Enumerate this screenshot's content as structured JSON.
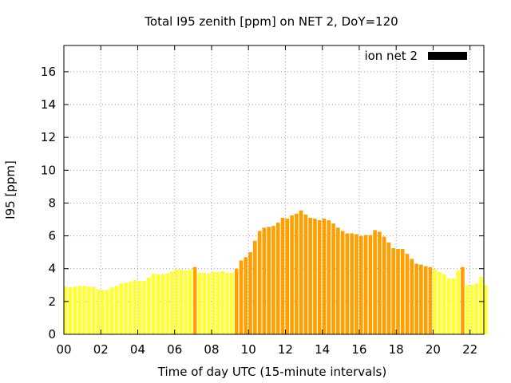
{
  "chart_data": {
    "type": "bar",
    "title": "Total I95 zenith [ppm] on NET 2, DoY=120",
    "xlabel": "Time of day UTC (15-minute intervals)",
    "ylabel": "I95 [ppm]",
    "xlim": [
      0,
      22.75
    ],
    "ylim": [
      0,
      17.6
    ],
    "xticks": [
      "00",
      "02",
      "04",
      "06",
      "08",
      "10",
      "12",
      "14",
      "16",
      "18",
      "20",
      "22"
    ],
    "yticks": [
      "0",
      "2",
      "4",
      "6",
      "8",
      "10",
      "12",
      "14",
      "16"
    ],
    "grid": true,
    "legend": {
      "position": "top-right",
      "label": "ion net 2",
      "color": "#000000"
    },
    "colors": {
      "low": "#ffff33",
      "high": "#ff9f00"
    },
    "x_step_hours": 0.25,
    "values": [
      2.9,
      2.85,
      2.9,
      2.95,
      2.95,
      2.9,
      2.9,
      2.75,
      2.7,
      2.7,
      2.85,
      2.95,
      3.1,
      3.15,
      3.2,
      3.3,
      3.25,
      3.25,
      3.45,
      3.7,
      3.65,
      3.65,
      3.7,
      3.85,
      3.95,
      3.95,
      3.9,
      3.95,
      4.1,
      3.75,
      3.75,
      3.7,
      3.8,
      3.8,
      3.85,
      3.75,
      3.75,
      4.0,
      4.5,
      4.7,
      5.0,
      5.7,
      6.3,
      6.5,
      6.55,
      6.6,
      6.8,
      7.1,
      7.05,
      7.25,
      7.35,
      7.55,
      7.3,
      7.1,
      7.05,
      6.95,
      7.05,
      6.95,
      6.75,
      6.5,
      6.3,
      6.15,
      6.15,
      6.1,
      6.0,
      6.05,
      6.05,
      6.35,
      6.25,
      5.95,
      5.6,
      5.25,
      5.2,
      5.2,
      4.9,
      4.6,
      4.3,
      4.25,
      4.15,
      4.1,
      3.95,
      3.8,
      3.65,
      3.4,
      3.4,
      3.9,
      4.1,
      3.0,
      3.0,
      3.1,
      3.5,
      3.0
    ],
    "high_flags": [
      0,
      0,
      0,
      0,
      0,
      0,
      0,
      0,
      0,
      0,
      0,
      0,
      0,
      0,
      0,
      0,
      0,
      0,
      0,
      0,
      0,
      0,
      0,
      0,
      0,
      0,
      0,
      0,
      1,
      0,
      0,
      0,
      0,
      0,
      0,
      0,
      0,
      1,
      1,
      1,
      1,
      1,
      1,
      1,
      1,
      1,
      1,
      1,
      1,
      1,
      1,
      1,
      1,
      1,
      1,
      1,
      1,
      1,
      1,
      1,
      1,
      1,
      1,
      1,
      1,
      1,
      1,
      1,
      1,
      1,
      1,
      1,
      1,
      1,
      1,
      1,
      1,
      1,
      1,
      1,
      0,
      0,
      0,
      0,
      0,
      0,
      1,
      0,
      0,
      0,
      0,
      0
    ]
  }
}
